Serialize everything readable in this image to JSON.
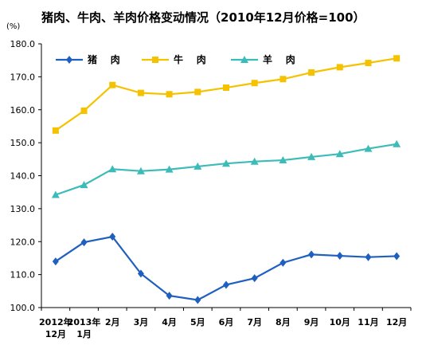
{
  "chart_data": {
    "type": "line",
    "title": "猪肉、牛肉、羊肉价格变动情况（2010年12月价格=100）",
    "ylabel": "(%)",
    "xlabel": "",
    "ylim": [
      100,
      180
    ],
    "yticks": [
      "100.0",
      "110.0",
      "120.0",
      "130.0",
      "140.0",
      "150.0",
      "160.0",
      "170.0",
      "180.0"
    ],
    "categories": [
      [
        "2012年",
        "12月"
      ],
      [
        "2013年",
        "1月"
      ],
      [
        "2月"
      ],
      [
        "3月"
      ],
      [
        "4月"
      ],
      [
        "5月"
      ],
      [
        "6月"
      ],
      [
        "7月"
      ],
      [
        "8月"
      ],
      [
        "9月"
      ],
      [
        "10月"
      ],
      [
        "11月"
      ],
      [
        "12月"
      ]
    ],
    "series": [
      {
        "name": "猪    肉",
        "color": "#1f5fbf",
        "marker": "diamond",
        "values": [
          114.0,
          119.8,
          121.5,
          110.3,
          103.6,
          102.3,
          106.9,
          108.9,
          113.6,
          116.1,
          115.7,
          115.3,
          115.6
        ]
      },
      {
        "name": "牛    肉",
        "color": "#f5c200",
        "marker": "square",
        "values": [
          153.7,
          159.7,
          167.5,
          165.1,
          164.7,
          165.4,
          166.7,
          168.1,
          169.3,
          171.3,
          172.9,
          174.2,
          175.6
        ]
      },
      {
        "name": "羊    肉",
        "color": "#3cbcb8",
        "marker": "triangle",
        "values": [
          134.2,
          137.2,
          142.0,
          141.4,
          141.9,
          142.8,
          143.7,
          144.3,
          144.7,
          145.7,
          146.6,
          148.2,
          149.6
        ]
      }
    ],
    "legend_position": "top-left",
    "grid": false
  }
}
